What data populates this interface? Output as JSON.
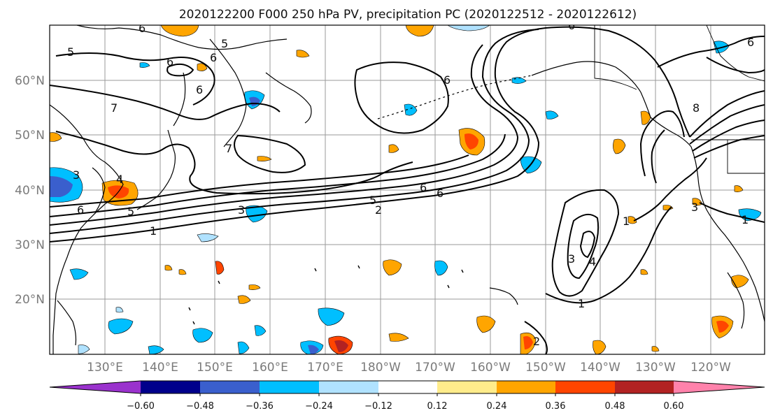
{
  "title": "2020122200 F000 250 hPa PV, precipitation PC (2020122512 - 2020122612)",
  "lat_labels": [
    "60°N",
    "50°N",
    "40°N",
    "30°N",
    "20°N"
  ],
  "lon_labels": [
    "130°E",
    "140°E",
    "150°E",
    "160°E",
    "170°E",
    "180°W",
    "170°W",
    "160°W",
    "150°W",
    "140°W",
    "130°W",
    "120°W"
  ],
  "colorbar": {
    "colors": [
      "#9a32cd",
      "#00008b",
      "#3a5fcd",
      "#00bfff",
      "#b0e2ff",
      "#ffffff",
      "#ffec8b",
      "#ffa500",
      "#ff4500",
      "#b22222",
      "#ff82ab"
    ],
    "tick_labels": [
      "−0.60",
      "−0.48",
      "−0.36",
      "−0.24",
      "−0.12",
      "0.12",
      "0.24",
      "0.36",
      "0.48",
      "0.60"
    ]
  },
  "contour_labels": [
    "5",
    "6",
    "5",
    "6",
    "6",
    "7",
    "6",
    "3",
    "4",
    "5",
    "6",
    "1",
    "3",
    "5",
    "7",
    "6",
    "5",
    "4",
    "2",
    "1",
    "3",
    "4",
    "1",
    "3",
    "1",
    "2",
    "8",
    "6",
    "6",
    "6"
  ]
}
